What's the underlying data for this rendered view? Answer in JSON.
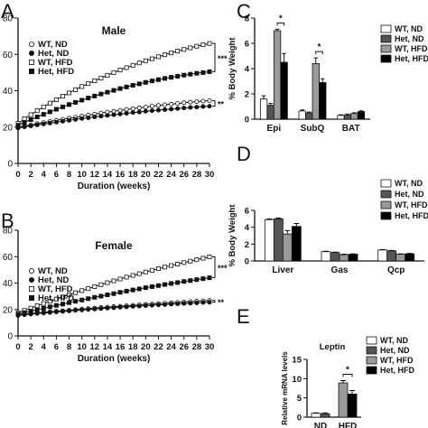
{
  "figure": {
    "panel_letters": [
      "A",
      "B",
      "C",
      "D",
      "E"
    ]
  },
  "chart_data": [
    {
      "id": "A",
      "type": "line",
      "title": "Male",
      "xlabel": "Duration (weeks)",
      "ylabel": "",
      "xlim": [
        0,
        30
      ],
      "ylim": [
        0,
        80
      ],
      "xticks": [
        0,
        2,
        4,
        6,
        8,
        10,
        12,
        14,
        16,
        18,
        20,
        22,
        24,
        26,
        28,
        30
      ],
      "yticks": [
        0,
        20,
        40,
        60,
        80
      ],
      "legend": "top-left",
      "significance": [
        "***",
        "**"
      ],
      "x": [
        0,
        1,
        2,
        3,
        4,
        5,
        6,
        7,
        8,
        9,
        10,
        11,
        12,
        13,
        14,
        15,
        16,
        17,
        18,
        19,
        20,
        21,
        22,
        23,
        24,
        25,
        26,
        27,
        28,
        29,
        30
      ],
      "series": [
        {
          "name": "WT, ND",
          "marker": "open-circle",
          "values": [
            20,
            20.6,
            21.2,
            21.9,
            22.5,
            23.1,
            23.7,
            24.3,
            24.9,
            25.4,
            26,
            26.6,
            27.1,
            27.7,
            28.2,
            28.7,
            29.2,
            29.7,
            30.2,
            30.6,
            31,
            31.5,
            31.9,
            32.3,
            32.6,
            33,
            33.4,
            33.7,
            34,
            34.3,
            34.6
          ]
        },
        {
          "name": "Het, ND",
          "marker": "filled-circle",
          "values": [
            19.5,
            20.1,
            20.6,
            21.2,
            21.7,
            22.2,
            22.7,
            23.2,
            23.7,
            24.2,
            24.7,
            25.1,
            25.6,
            26,
            26.4,
            26.8,
            27.2,
            27.6,
            28,
            28.3,
            28.7,
            29,
            29.3,
            29.6,
            29.9,
            30.2,
            30.5,
            30.8,
            31,
            31.3,
            31.5
          ]
        },
        {
          "name": "WT, HFD",
          "marker": "open-square",
          "values": [
            22,
            24.5,
            26.8,
            29,
            31.1,
            33.2,
            35.1,
            37,
            38.8,
            40.6,
            42.3,
            43.9,
            45.5,
            47,
            48.5,
            50,
            51.4,
            52.7,
            54,
            55.3,
            56.5,
            57.6,
            58.7,
            59.8,
            60.8,
            61.8,
            62.7,
            63.6,
            64.5,
            65.3,
            66
          ]
        },
        {
          "name": "Het, HFD",
          "marker": "filled-square",
          "values": [
            21,
            22.6,
            24.1,
            25.6,
            27,
            28.4,
            29.8,
            31.1,
            32.4,
            33.6,
            34.8,
            36,
            37.1,
            38.2,
            39.2,
            40.2,
            41.2,
            42.1,
            43,
            43.8,
            44.6,
            45.4,
            46.1,
            46.8,
            47.4,
            48,
            48.6,
            49.1,
            49.6,
            50,
            50.5
          ]
        }
      ]
    },
    {
      "id": "B",
      "type": "line",
      "title": "Female",
      "xlabel": "Duration (weeks)",
      "ylabel": "",
      "xlim": [
        0,
        30
      ],
      "ylim": [
        0,
        80
      ],
      "xticks": [
        0,
        2,
        4,
        6,
        8,
        10,
        12,
        14,
        16,
        18,
        20,
        22,
        24,
        26,
        28,
        30
      ],
      "yticks": [
        0,
        20,
        40,
        60,
        80
      ],
      "legend": "top-left",
      "significance": [
        "***",
        "**"
      ],
      "x": [
        0,
        1,
        2,
        3,
        4,
        5,
        6,
        7,
        8,
        9,
        10,
        11,
        12,
        13,
        14,
        15,
        16,
        17,
        18,
        19,
        20,
        21,
        22,
        23,
        24,
        25,
        26,
        27,
        28,
        29,
        30
      ],
      "series": [
        {
          "name": "WT, ND",
          "marker": "open-circle",
          "values": [
            16,
            16.5,
            17,
            17.4,
            17.9,
            18.3,
            18.7,
            19.1,
            19.5,
            19.9,
            20.3,
            20.7,
            21.1,
            21.5,
            21.8,
            22.2,
            22.5,
            22.9,
            23.2,
            23.5,
            23.9,
            24.2,
            24.5,
            24.8,
            25.1,
            25.4,
            25.7,
            26,
            26.3,
            26.5,
            26.8
          ]
        },
        {
          "name": "Het, ND",
          "marker": "filled-circle",
          "values": [
            15.5,
            16,
            16.5,
            16.9,
            17.3,
            17.7,
            18.1,
            18.5,
            18.9,
            19.3,
            19.6,
            20,
            20.3,
            20.7,
            21,
            21.3,
            21.7,
            22,
            22.3,
            22.6,
            22.9,
            23.2,
            23.5,
            23.7,
            24,
            24.3,
            24.5,
            24.8,
            25,
            25.3,
            25.5
          ]
        },
        {
          "name": "WT, HFD",
          "marker": "open-square",
          "values": [
            17.5,
            19.3,
            21,
            22.8,
            24.5,
            26.2,
            27.9,
            29.5,
            31.1,
            32.7,
            34.3,
            35.8,
            37.3,
            38.8,
            40.3,
            41.7,
            43.1,
            44.5,
            45.8,
            47.1,
            48.4,
            49.7,
            50.9,
            52.1,
            53.3,
            54.4,
            55.5,
            56.6,
            57.7,
            58.8,
            59.8
          ]
        },
        {
          "name": "Het, HFD",
          "marker": "filled-square",
          "values": [
            16.5,
            17.6,
            18.7,
            19.8,
            20.9,
            22,
            23.1,
            24.1,
            25.2,
            26.2,
            27.2,
            28.2,
            29.2,
            30.1,
            31.1,
            32,
            33,
            33.9,
            34.8,
            35.6,
            36.5,
            37.3,
            38.1,
            38.9,
            39.7,
            40.4,
            41.2,
            41.9,
            42.6,
            43.3,
            44
          ]
        }
      ]
    },
    {
      "id": "C",
      "type": "bar",
      "title": "",
      "xlabel": "",
      "ylabel": "% Body Weight",
      "ylim": [
        0,
        8
      ],
      "yticks": [
        0,
        2,
        4,
        6,
        8
      ],
      "legend": "right",
      "categories": [
        "Epi",
        "SubQ",
        "BAT"
      ],
      "series": [
        {
          "name": "WT, ND",
          "values": [
            1.6,
            0.65,
            0.3
          ],
          "errors": [
            0.25,
            0.08,
            0.05
          ]
        },
        {
          "name": "Het, ND",
          "values": [
            1.1,
            0.5,
            0.35
          ],
          "errors": [
            0.15,
            0.06,
            0.05
          ]
        },
        {
          "name": "WT, HFD",
          "values": [
            7.0,
            4.4,
            0.45
          ],
          "errors": [
            0.12,
            0.45,
            0.06
          ]
        },
        {
          "name": "Het, HFD",
          "values": [
            4.5,
            2.9,
            0.6
          ],
          "errors": [
            0.7,
            0.3,
            0.06
          ]
        }
      ],
      "significance": [
        {
          "category": "Epi",
          "label": "*"
        },
        {
          "category": "SubQ",
          "label": "*"
        }
      ]
    },
    {
      "id": "D",
      "type": "bar",
      "title": "",
      "xlabel": "",
      "ylabel": "% Body Weight",
      "ylim": [
        0,
        6
      ],
      "yticks": [
        0,
        2,
        4,
        6
      ],
      "legend": "right",
      "categories": [
        "Liver",
        "Gas",
        "Qcp"
      ],
      "series": [
        {
          "name": "WT, ND",
          "values": [
            4.9,
            1.1,
            1.3
          ],
          "errors": [
            0.1,
            0.05,
            0.05
          ]
        },
        {
          "name": "Het, ND",
          "values": [
            5.0,
            1.0,
            1.2
          ],
          "errors": [
            0.1,
            0.05,
            0.05
          ]
        },
        {
          "name": "WT, HFD",
          "values": [
            3.2,
            0.75,
            0.8
          ],
          "errors": [
            0.4,
            0.05,
            0.05
          ]
        },
        {
          "name": "Het, HFD",
          "values": [
            4.1,
            0.8,
            0.85
          ],
          "errors": [
            0.35,
            0.05,
            0.05
          ]
        }
      ]
    },
    {
      "id": "E",
      "type": "bar",
      "title": "Leptin",
      "xlabel": "",
      "ylabel": "Relative mRNA levels",
      "ylim": [
        0,
        15
      ],
      "yticks": [
        0,
        5,
        10,
        15
      ],
      "legend": "right",
      "categories": [
        "ND",
        "HFD"
      ],
      "series": [
        {
          "name": "WT, ND",
          "values": [
            1.0,
            null
          ],
          "errors": [
            0.1,
            null
          ]
        },
        {
          "name": "Het, ND",
          "values": [
            0.9,
            null
          ],
          "errors": [
            0.2,
            null
          ]
        },
        {
          "name": "WT, HFD",
          "values": [
            null,
            8.9
          ],
          "errors": [
            null,
            0.6
          ]
        },
        {
          "name": "Het, HFD",
          "values": [
            null,
            6.0
          ],
          "errors": [
            null,
            0.9
          ]
        }
      ],
      "significance": [
        {
          "category": "HFD",
          "label": "*"
        }
      ]
    }
  ],
  "colors": {
    "WT, ND": "#ffffff",
    "Het, ND": "#555555",
    "WT, HFD": "#9a9a9a",
    "Het, HFD": "#000000",
    "axis": "#111111"
  }
}
